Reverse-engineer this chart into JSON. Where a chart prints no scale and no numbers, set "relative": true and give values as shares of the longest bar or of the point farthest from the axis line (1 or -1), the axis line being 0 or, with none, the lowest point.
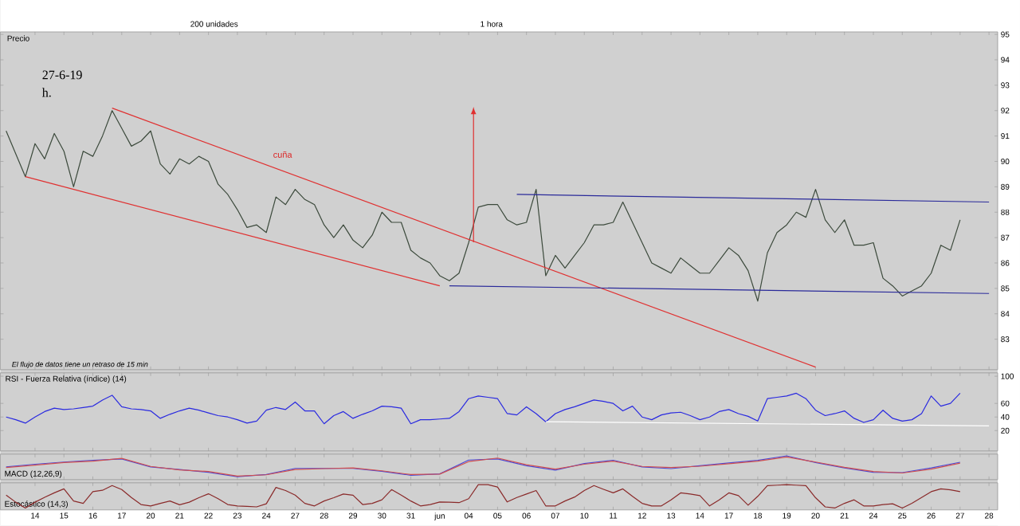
{
  "chart_data": [
    {
      "type": "line",
      "tick_labels": "y",
      "ylim": [
        81.8,
        95.1
      ],
      "categories": [
        null,
        null,
        null,
        null,
        null,
        null,
        null,
        null,
        null,
        null,
        null,
        null,
        null,
        null,
        null,
        null,
        null,
        null,
        null,
        null,
        null,
        null,
        null,
        null,
        null,
        null,
        null,
        null,
        null,
        null,
        null,
        null,
        null,
        null,
        null,
        null,
        null,
        null,
        null,
        null,
        null,
        null,
        null,
        null,
        null,
        null,
        null,
        null,
        null,
        null,
        null,
        null,
        null,
        null,
        null,
        null,
        null,
        null,
        null,
        null,
        null,
        null,
        null,
        null,
        null,
        null,
        null,
        null,
        null,
        null,
        null,
        null,
        null,
        null,
        null,
        null,
        null,
        null,
        null,
        null,
        null,
        null,
        null,
        null,
        null,
        null,
        null,
        null,
        null,
        null,
        null,
        null,
        null,
        null,
        null,
        null,
        null,
        null,
        null,
        null,
        null,
        null,
        null
      ],
      "yticks": [
        83,
        84,
        85,
        86,
        87,
        88,
        89,
        90,
        91,
        92,
        93,
        94,
        95
      ],
      "annotations": [
        "200 unidades",
        "1 hora",
        "Precio",
        "27-6-19",
        "h.",
        "El flujo de datos tiene un retraso de 15 min",
        "cuña"
      ],
      "series": [
        {
          "color": "#3c4a3c",
          "values": [
            91.2,
            90.3,
            89.4,
            90.7,
            90.1,
            91.1,
            90.4,
            89.0,
            90.4,
            90.2,
            91.0,
            92.0,
            91.3,
            90.6,
            90.8,
            91.2,
            89.9,
            89.5,
            90.1,
            89.9,
            90.2,
            90.0,
            89.1,
            88.7,
            88.1,
            87.4,
            87.5,
            87.2,
            88.6,
            88.3,
            88.9,
            88.5,
            88.3,
            87.5,
            87.0,
            87.5,
            86.9,
            86.6,
            87.1,
            88.0,
            87.6,
            87.6,
            86.5,
            86.2,
            86.0,
            85.5,
            85.3,
            85.6,
            86.8,
            88.2,
            88.3,
            88.3,
            87.7,
            87.5,
            87.6,
            88.9,
            85.5,
            86.3,
            85.8,
            86.3,
            86.8,
            87.5,
            87.5,
            87.6,
            88.4,
            87.6,
            86.8,
            86.0,
            85.8,
            85.6,
            86.2,
            85.9,
            85.6,
            85.6,
            86.1,
            86.6,
            86.3,
            85.7,
            84.5,
            86.4,
            87.2,
            87.5,
            88.0,
            87.8,
            88.9,
            87.7,
            87.2,
            87.7,
            86.7,
            86.7,
            86.8,
            85.4,
            85.1,
            84.7,
            84.9,
            85.1,
            85.6,
            86.7,
            86.5,
            87.7,
            null,
            null,
            null
          ]
        },
        {
          "color": "#e03030",
          "values": [
            null,
            null,
            null,
            null,
            null,
            null,
            null,
            null,
            null,
            null,
            null,
            92.1,
            null,
            null,
            null,
            null,
            null,
            null,
            null,
            null,
            null,
            null,
            null,
            null,
            null,
            null,
            null,
            null,
            null,
            null,
            null,
            null,
            null,
            null,
            null,
            null,
            null,
            null,
            null,
            null,
            null,
            null,
            null,
            null,
            null,
            null,
            null,
            null,
            null,
            null,
            null,
            null,
            null,
            null,
            null,
            null,
            null,
            null,
            null,
            null,
            null,
            null,
            null,
            null,
            null,
            null,
            null,
            null,
            null,
            null,
            null,
            null,
            null,
            null,
            null,
            null,
            null,
            null,
            null,
            null,
            null,
            null,
            null,
            null,
            81.9,
            null,
            null,
            null,
            null,
            null,
            null,
            null,
            null,
            null,
            null,
            null,
            null,
            null,
            null,
            null,
            null,
            null,
            null
          ]
        },
        {
          "color": "#e03030",
          "values": [
            null,
            null,
            89.4,
            null,
            null,
            null,
            null,
            null,
            null,
            null,
            null,
            null,
            null,
            null,
            null,
            null,
            null,
            null,
            null,
            null,
            null,
            null,
            null,
            null,
            null,
            null,
            null,
            null,
            null,
            null,
            null,
            null,
            null,
            null,
            null,
            null,
            null,
            null,
            null,
            null,
            null,
            null,
            null,
            null,
            null,
            85.1,
            null,
            null,
            null,
            null,
            null,
            null,
            null,
            null,
            null,
            null,
            null,
            null,
            null,
            null,
            null,
            null,
            null,
            null,
            null,
            null,
            null,
            null,
            null,
            null,
            null,
            null,
            null,
            null,
            null,
            null,
            null,
            null,
            null,
            null,
            null,
            null,
            null,
            null,
            null,
            null,
            null,
            null,
            null,
            null,
            null,
            null,
            null,
            null,
            null,
            null,
            null,
            null,
            null,
            null,
            null,
            null,
            null
          ]
        },
        {
          "color": "#2a2a9a",
          "values": [
            null,
            null,
            null,
            null,
            null,
            null,
            null,
            null,
            null,
            null,
            null,
            null,
            null,
            null,
            null,
            null,
            null,
            null,
            null,
            null,
            null,
            null,
            null,
            null,
            null,
            null,
            null,
            null,
            null,
            null,
            null,
            null,
            null,
            null,
            null,
            null,
            null,
            null,
            null,
            null,
            null,
            null,
            null,
            null,
            null,
            null,
            null,
            null,
            null,
            null,
            null,
            null,
            null,
            88.7,
            null,
            null,
            null,
            null,
            null,
            null,
            null,
            null,
            null,
            null,
            null,
            null,
            null,
            null,
            null,
            null,
            null,
            null,
            null,
            null,
            null,
            null,
            null,
            null,
            null,
            null,
            null,
            null,
            null,
            null,
            null,
            null,
            null,
            null,
            null,
            null,
            null,
            null,
            null,
            null,
            null,
            null,
            null,
            null,
            null,
            null,
            null,
            null,
            88.4
          ]
        },
        {
          "color": "#2a2a9a",
          "values": [
            null,
            null,
            null,
            null,
            null,
            null,
            null,
            null,
            null,
            null,
            null,
            null,
            null,
            null,
            null,
            null,
            null,
            null,
            null,
            null,
            null,
            null,
            null,
            null,
            null,
            null,
            null,
            null,
            null,
            null,
            null,
            null,
            null,
            null,
            null,
            null,
            null,
            null,
            null,
            null,
            null,
            null,
            null,
            null,
            null,
            null,
            85.1,
            null,
            null,
            null,
            null,
            null,
            null,
            null,
            null,
            null,
            null,
            null,
            null,
            null,
            null,
            null,
            null,
            null,
            null,
            null,
            null,
            null,
            null,
            null,
            null,
            null,
            null,
            null,
            null,
            null,
            null,
            null,
            null,
            null,
            null,
            null,
            null,
            null,
            null,
            null,
            null,
            null,
            null,
            null,
            null,
            null,
            null,
            null,
            null,
            null,
            null,
            null,
            null,
            null,
            null,
            null,
            84.8
          ]
        }
      ]
    },
    {
      "type": "line",
      "tick_labels": "y",
      "title": "RSI - Fuerza Relativa (índice) (14)",
      "ylim": [
        -10,
        105
      ],
      "categories": [
        null,
        null,
        null,
        null,
        null,
        null,
        null,
        null,
        null,
        null,
        null,
        null,
        null,
        null,
        null,
        null,
        null,
        null,
        null,
        null,
        null,
        null,
        null,
        null,
        null,
        null,
        null,
        null,
        null,
        null,
        null,
        null,
        null,
        null,
        null,
        null,
        null,
        null,
        null,
        null,
        null,
        null,
        null,
        null,
        null,
        null,
        null,
        null,
        null,
        null,
        null,
        null,
        null,
        null,
        null,
        null,
        null,
        null,
        null,
        null,
        null,
        null,
        null,
        null,
        null,
        null,
        null,
        null,
        null,
        null,
        null,
        null,
        null,
        null,
        null,
        null,
        null,
        null,
        null,
        null,
        null,
        null,
        null,
        null,
        null,
        null,
        null,
        null,
        null,
        null,
        null,
        null,
        null,
        null,
        null,
        null,
        null,
        null,
        null,
        null,
        null,
        null,
        null
      ],
      "yticks": [
        20,
        40,
        60,
        100
      ],
      "series": [
        {
          "color": "#2a2ae0",
          "values": [
            40,
            36,
            31,
            40,
            48,
            53,
            51,
            52,
            54,
            56,
            65,
            72,
            55,
            52,
            51,
            49,
            38,
            44,
            49,
            53,
            50,
            46,
            42,
            40,
            36,
            31,
            34,
            50,
            54,
            51,
            62,
            49,
            49,
            30,
            42,
            48,
            38,
            44,
            49,
            56,
            55,
            53,
            30,
            36,
            36,
            37,
            38,
            48,
            67,
            71,
            69,
            67,
            45,
            43,
            55,
            45,
            33,
            45,
            51,
            55,
            60,
            65,
            63,
            60,
            49,
            56,
            40,
            36,
            43,
            46,
            47,
            42,
            36,
            40,
            48,
            51,
            45,
            41,
            34,
            67,
            69,
            71,
            75,
            67,
            50,
            42,
            45,
            49,
            38,
            32,
            36,
            50,
            38,
            34,
            36,
            45,
            71,
            56,
            60,
            75,
            null,
            null,
            null
          ]
        },
        {
          "color": "#ffffff",
          "values": [
            null,
            null,
            null,
            null,
            null,
            null,
            null,
            null,
            null,
            null,
            null,
            null,
            null,
            null,
            null,
            null,
            null,
            null,
            null,
            null,
            null,
            null,
            null,
            null,
            null,
            null,
            null,
            null,
            null,
            null,
            null,
            null,
            null,
            null,
            null,
            null,
            null,
            null,
            null,
            null,
            null,
            null,
            null,
            null,
            null,
            null,
            null,
            null,
            null,
            null,
            null,
            null,
            null,
            null,
            null,
            null,
            33,
            null,
            null,
            null,
            null,
            null,
            null,
            null,
            null,
            null,
            null,
            null,
            null,
            null,
            null,
            null,
            null,
            null,
            null,
            null,
            null,
            null,
            null,
            null,
            null,
            null,
            null,
            null,
            null,
            null,
            null,
            null,
            null,
            null,
            null,
            null,
            null,
            null,
            null,
            null,
            null,
            null,
            null,
            null,
            null,
            null,
            27
          ]
        }
      ]
    },
    {
      "type": "line",
      "relative": true,
      "tick_labels": false,
      "title": "MACD (12,26,9)",
      "categories": [
        null,
        null,
        null,
        null,
        null,
        null,
        null,
        null,
        null,
        null,
        null,
        null,
        null,
        null,
        null,
        null,
        null,
        null,
        null,
        null,
        null,
        null,
        null,
        null,
        null,
        null,
        null,
        null,
        null,
        null,
        null,
        null,
        null,
        null,
        null
      ],
      "series": [
        {
          "color": "#4a4ad8",
          "values": [
            0.5,
            0.62,
            0.72,
            0.8,
            0.86,
            0.5,
            0.38,
            0.25,
            0.05,
            0.15,
            0.43,
            0.43,
            0.43,
            0.3,
            0.12,
            0.18,
            0.81,
            0.86,
            0.55,
            0.35,
            0.65,
            0.8,
            0.5,
            0.42,
            0.55,
            0.68,
            0.8,
            1,
            0.7,
            0.45,
            0.25,
            0.24,
            0.45,
            0.71,
            null
          ]
        },
        {
          "color": "#d05050",
          "values": [
            0.47,
            0.58,
            0.7,
            0.76,
            0.89,
            0.52,
            0.36,
            0.29,
            0.08,
            0.14,
            0.38,
            0.42,
            0.45,
            0.32,
            0.15,
            0.17,
            0.74,
            0.9,
            0.6,
            0.4,
            0.62,
            0.76,
            0.52,
            0.47,
            0.53,
            0.64,
            0.76,
            0.95,
            0.72,
            0.48,
            0.29,
            0.22,
            0.4,
            0.67,
            null
          ]
        }
      ]
    },
    {
      "type": "line",
      "relative": true,
      "tick_labels": "x",
      "title": "Estocástico (14,3)",
      "categories": [
        null,
        null,
        null,
        "14",
        null,
        null,
        "15",
        null,
        null,
        "16",
        null,
        null,
        "17",
        null,
        null,
        "20",
        null,
        null,
        "21",
        null,
        null,
        "22",
        null,
        null,
        "23",
        null,
        null,
        "24",
        null,
        null,
        "27",
        null,
        null,
        "28",
        null,
        null,
        "29",
        null,
        null,
        "30",
        null,
        null,
        "31",
        null,
        null,
        "jun",
        null,
        null,
        "04",
        null,
        null,
        "05",
        null,
        null,
        "06",
        null,
        null,
        "07",
        null,
        null,
        "10",
        null,
        null,
        "11",
        null,
        null,
        "12",
        null,
        null,
        "13",
        null,
        null,
        "14",
        null,
        null,
        "17",
        null,
        null,
        "18",
        null,
        null,
        "19",
        null,
        null,
        "20",
        null,
        null,
        "21",
        null,
        null,
        "24",
        null,
        null,
        "25",
        null,
        null,
        "26",
        null,
        null,
        "27",
        null,
        null,
        "28"
      ],
      "series": [
        {
          "color": "#8a2a2a",
          "values": [
            0.55,
            0.25,
            0,
            0.25,
            0.46,
            0.65,
            0.82,
            0.3,
            0.2,
            0.7,
            0.76,
            0.96,
            0.79,
            0.45,
            0.15,
            0.09,
            0.2,
            0.3,
            0.14,
            0.25,
            0.44,
            0.61,
            0.4,
            0.15,
            0.09,
            0.07,
            0.05,
            0.18,
            0.88,
            0.75,
            0.55,
            0.2,
            0.09,
            0.3,
            0.44,
            0.6,
            0.55,
            0.15,
            0.2,
            0.35,
            0.79,
            0.55,
            0.3,
            0.09,
            0.15,
            0.26,
            0.25,
            0.23,
            0.4,
            1,
            1,
            0.9,
            0.26,
            0.45,
            0.6,
            0.75,
            0.09,
            0.09,
            0.3,
            0.47,
            0.75,
            0.96,
            0.8,
            0.65,
            0.82,
            0.5,
            0.2,
            0.09,
            0.09,
            0.35,
            0.65,
            0.6,
            0.53,
            0.09,
            0.35,
            0.65,
            0.53,
            0.12,
            0.5,
            0.96,
            0.98,
            1,
            0.98,
            0.96,
            0.44,
            0.05,
            0,
            0.2,
            0.35,
            0.09,
            0.09,
            0.15,
            0.18,
            0,
            0.2,
            0.45,
            0.7,
            0.82,
            0.78,
            0.7,
            null,
            null,
            null
          ]
        }
      ]
    }
  ]
}
